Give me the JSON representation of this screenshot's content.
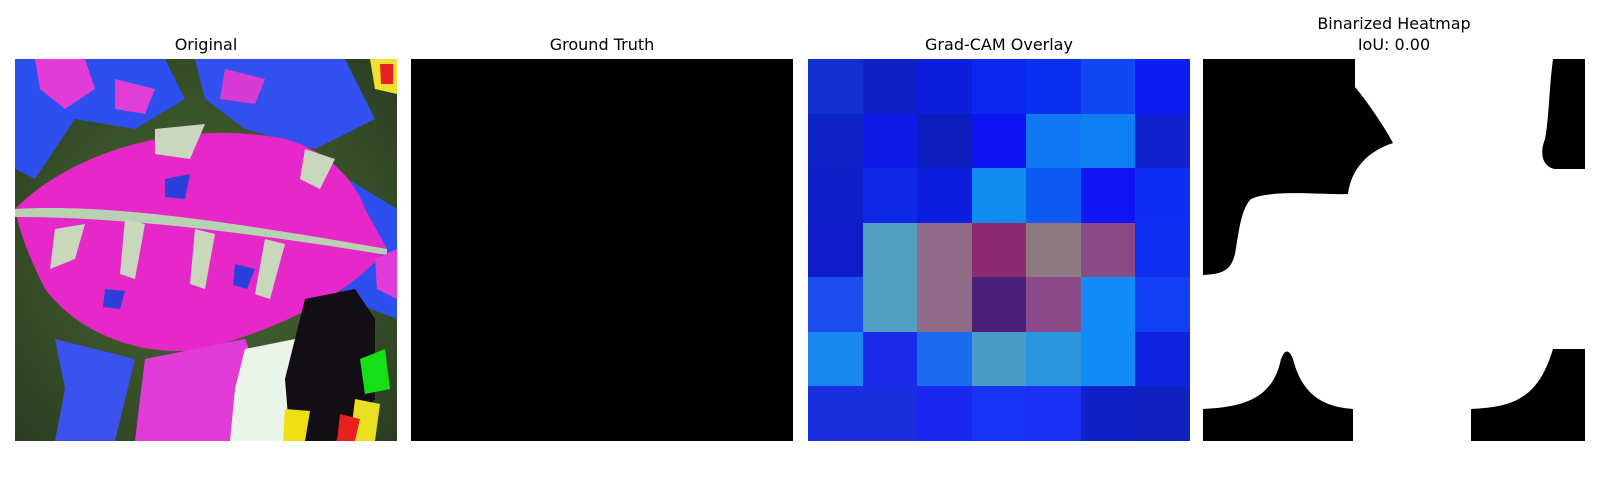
{
  "panels": {
    "original": {
      "title": "Original"
    },
    "ground_truth": {
      "title": "Ground Truth"
    },
    "gradcam": {
      "title": "Grad-CAM Overlay",
      "cell_colors": [
        [
          "#1230cf",
          "#0f22c6",
          "#0c1fdc",
          "#0c28f0",
          "#0c30f2",
          "#0f48f4",
          "#0f1df5"
        ],
        [
          "#0f24c6",
          "#0f1ce8",
          "#0c1dbe",
          "#0c14f2",
          "#0f78f2",
          "#0f7ef0",
          "#0f22cf"
        ],
        [
          "#0f22c9",
          "#0f28e8",
          "#0c1ee0",
          "#0f8ef0",
          "#0c5af2",
          "#0f16f5",
          "#0f2ef5"
        ],
        [
          "#0f1eca",
          "#4f9fc0",
          "#906c8a",
          "#8a2a70",
          "#8c7a80",
          "#8a4a88",
          "#0f30f2"
        ],
        [
          "#1a4cf0",
          "#4f9fc0",
          "#906c88",
          "#4a1e7a",
          "#8c4a88",
          "#0f8cf5",
          "#0f40f2"
        ],
        [
          "#1a86f0",
          "#1a2ce8",
          "#1a6cf0",
          "#4a9cc8",
          "#2a96e0",
          "#0f8cf5",
          "#0f24e0"
        ],
        [
          "#1a30e0",
          "#1a30e0",
          "#1a28f2",
          "#1a34f5",
          "#1a30f5",
          "#0f22c6",
          "#0f22c0"
        ]
      ]
    },
    "binarized": {
      "title": "Binarized Heatmap",
      "iou_label": "IoU: 0.00"
    }
  }
}
